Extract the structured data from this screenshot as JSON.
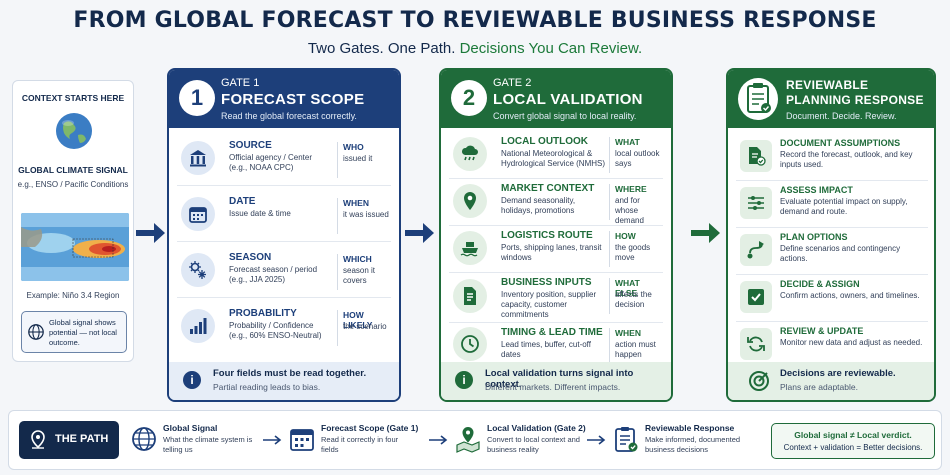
{
  "header": {
    "title": "FROM GLOBAL FORECAST TO REVIEWABLE BUSINESS RESPONSE",
    "subtitle_a": "Two Gates. One Path.",
    "subtitle_b": "Decisions You Can Review."
  },
  "context": {
    "heading": "CONTEXT STARTS HERE",
    "signal": "GLOBAL CLIMATE SIGNAL",
    "example_line": "e.g., ENSO / Pacific Conditions",
    "region": "Example: Niño 3.4 Region",
    "note": "Global signal shows potential — not local outcome."
  },
  "gate1": {
    "number": "1",
    "kicker": "GATE 1",
    "title": "FORECAST SCOPE",
    "subtitle": "Read the global forecast correctly.",
    "rows": [
      {
        "icon": "building-icon",
        "title": "SOURCE",
        "desc": "Official agency / Center (e.g., NOAA CPC)",
        "q": "WHO",
        "qd": "issued it"
      },
      {
        "icon": "calendar-icon",
        "title": "DATE",
        "desc": "Issue date & time",
        "q": "WHEN",
        "qd": "it was issued"
      },
      {
        "icon": "sun-snow-icon",
        "title": "SEASON",
        "desc": "Forecast season / period (e.g., JJA 2025)",
        "q": "WHICH",
        "qd": "season it covers"
      },
      {
        "icon": "bar-chart-icon",
        "title": "PROBABILITY",
        "desc": "Probability / Confidence (e.g., 60% ENSO-Neutral)",
        "q": "HOW LIKELY",
        "qd": "the scenario"
      }
    ],
    "footer_title": "Four fields must be read together.",
    "footer_sub": "Partial reading leads to bias."
  },
  "gate2": {
    "number": "2",
    "kicker": "GATE 2",
    "title": "LOCAL VALIDATION",
    "subtitle": "Convert global signal to local reality.",
    "rows": [
      {
        "icon": "rain-cloud-icon",
        "title": "LOCAL OUTLOOK",
        "desc": "National Meteorological & Hydrological Service (NMHS)",
        "q": "WHAT",
        "qd": "local outlook says"
      },
      {
        "icon": "map-pin-icon",
        "title": "MARKET CONTEXT",
        "desc": "Demand seasonality, holidays, promotions",
        "q": "WHERE",
        "qd": "and for whose demand"
      },
      {
        "icon": "ship-icon",
        "title": "LOGISTICS ROUTE",
        "desc": "Ports, shipping lanes, transit windows",
        "q": "HOW",
        "qd": "the goods move"
      },
      {
        "icon": "document-icon",
        "title": "BUSINESS INPUTS",
        "desc": "Inventory position, supplier capacity, customer commitments",
        "q": "WHAT ELSE",
        "qd": "affects the decision"
      },
      {
        "icon": "clock-icon",
        "title": "TIMING & LEAD TIME",
        "desc": "Lead times, buffer, cut-off dates",
        "q": "WHEN",
        "qd": "action must happen"
      }
    ],
    "footer_title": "Local validation turns signal into context.",
    "footer_sub": "Different markets. Different impacts."
  },
  "gate3": {
    "title": "REVIEWABLE PLANNING RESPONSE",
    "subtitle": "Document. Decide. Review.",
    "rows": [
      {
        "icon": "doc-check-icon",
        "title": "DOCUMENT ASSUMPTIONS",
        "desc": "Record the forecast, outlook, and key inputs used."
      },
      {
        "icon": "sliders-icon",
        "title": "ASSESS IMPACT",
        "desc": "Evaluate potential impact on supply, demand and route."
      },
      {
        "icon": "route-icon",
        "title": "PLAN OPTIONS",
        "desc": "Define scenarios and contingency actions."
      },
      {
        "icon": "checkbox-icon",
        "title": "DECIDE & ASSIGN",
        "desc": "Confirm actions, owners, and timelines."
      },
      {
        "icon": "refresh-icon",
        "title": "REVIEW & UPDATE",
        "desc": "Monitor new data and adjust as needed."
      }
    ],
    "footer_title": "Decisions are reviewable.",
    "footer_sub": "Plans are adaptable."
  },
  "path": {
    "label": "THE PATH",
    "steps": [
      {
        "icon": "globe-icon",
        "title": "Global Signal",
        "desc": "What the climate system is telling us"
      },
      {
        "icon": "calendar-icon",
        "title": "Forecast Scope (Gate 1)",
        "desc": "Read it correctly in four fields"
      },
      {
        "icon": "map-icon",
        "title": "Local Validation (Gate 2)",
        "desc": "Convert to local context and business reality"
      },
      {
        "icon": "clipboard-icon",
        "title": "Reviewable Response",
        "desc": "Make informed, documented business decisions"
      }
    ],
    "verdict_1": "Global signal ≠ Local verdict.",
    "verdict_2": "Context + validation = Better decisions."
  },
  "colors": {
    "navy": "#1d3f7a",
    "green": "#1f6b3a",
    "dark": "#13294b"
  }
}
